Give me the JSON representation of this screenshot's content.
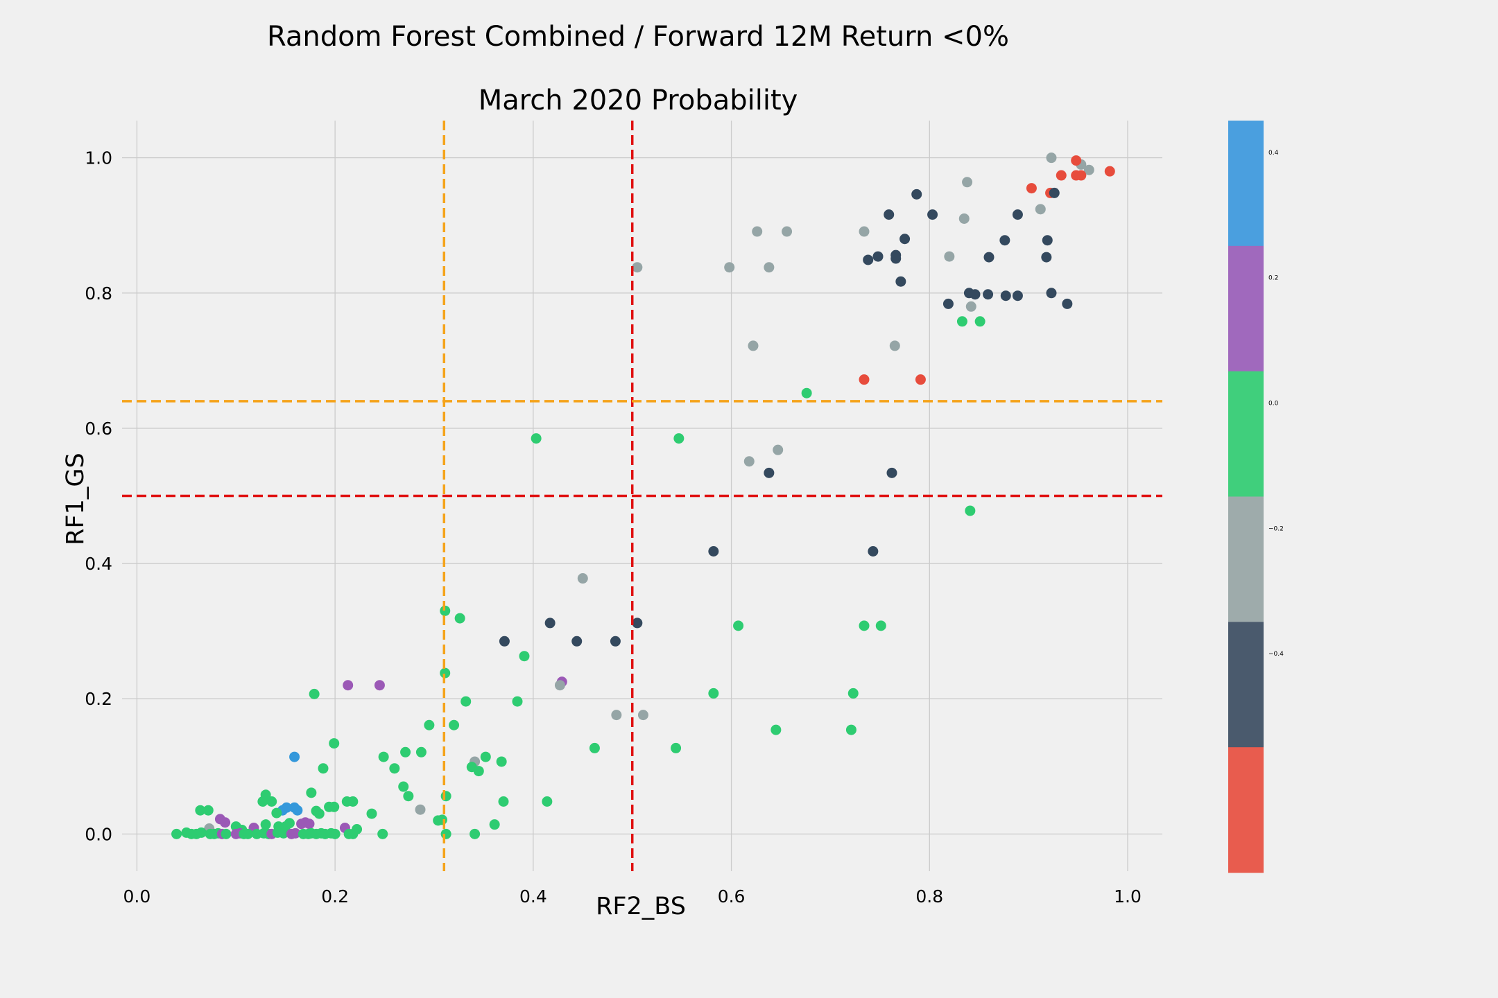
{
  "chart_data": {
    "type": "scatter",
    "title": "Random Forest Combined / Forward 12M Return <0%",
    "subtitle": "March 2020 Probability",
    "xlabel": "RF2_BS",
    "ylabel": "RF1_GS",
    "xlim": [
      -0.015,
      1.035
    ],
    "ylim": [
      -0.055,
      1.055
    ],
    "xticks": [
      "0.0",
      "0.2",
      "0.4",
      "0.6",
      "0.8",
      "1.0"
    ],
    "yticks": [
      "0.0",
      "0.2",
      "0.4",
      "0.6",
      "0.8",
      "1.0"
    ],
    "grid": true,
    "reference_lines": {
      "vertical": [
        {
          "x": 0.31,
          "color": "#f5a31a",
          "style": "dashed"
        },
        {
          "x": 0.5,
          "color": "#e01010",
          "style": "dashed"
        }
      ],
      "horizontal": [
        {
          "y": 0.64,
          "color": "#f5a31a",
          "style": "dashed"
        },
        {
          "y": 0.5,
          "color": "#e01010",
          "style": "dashed"
        }
      ]
    },
    "colorbar": {
      "ticks": [
        "0.4",
        "0.2",
        "0.0",
        "−0.2",
        "−0.4"
      ],
      "bands": [
        {
          "color": "#4a9fdf"
        },
        {
          "color": "#a069bd"
        },
        {
          "color": "#40cf7c"
        },
        {
          "color": "#9eabab"
        },
        {
          "color": "#4a5a6d"
        },
        {
          "color": "#e85c4e"
        }
      ]
    },
    "colors": {
      "red": "#e74c3c",
      "navy": "#34495e",
      "gray": "#95a5a6",
      "green": "#2ecc71",
      "purple": "#9b59b6",
      "blue": "#3498db"
    },
    "points": [
      [
        0.923,
        1.0,
        "gray"
      ],
      [
        0.953,
        0.99,
        "gray"
      ],
      [
        0.961,
        0.982,
        "gray"
      ],
      [
        0.948,
        0.996,
        "red"
      ],
      [
        0.982,
        0.98,
        "red"
      ],
      [
        0.933,
        0.974,
        "red"
      ],
      [
        0.948,
        0.974,
        "red"
      ],
      [
        0.953,
        0.974,
        "red"
      ],
      [
        0.903,
        0.955,
        "red"
      ],
      [
        0.922,
        0.948,
        "red"
      ],
      [
        0.926,
        0.948,
        "navy"
      ],
      [
        0.838,
        0.964,
        "gray"
      ],
      [
        0.787,
        0.946,
        "navy"
      ],
      [
        0.803,
        0.916,
        "navy"
      ],
      [
        0.759,
        0.916,
        "navy"
      ],
      [
        0.889,
        0.916,
        "navy"
      ],
      [
        0.912,
        0.924,
        "gray"
      ],
      [
        0.835,
        0.91,
        "gray"
      ],
      [
        0.626,
        0.891,
        "gray"
      ],
      [
        0.656,
        0.891,
        "gray"
      ],
      [
        0.734,
        0.891,
        "gray"
      ],
      [
        0.775,
        0.88,
        "navy"
      ],
      [
        0.876,
        0.878,
        "navy"
      ],
      [
        0.919,
        0.878,
        "navy"
      ],
      [
        0.738,
        0.849,
        "navy"
      ],
      [
        0.748,
        0.854,
        "navy"
      ],
      [
        0.766,
        0.851,
        "navy"
      ],
      [
        0.766,
        0.856,
        "navy"
      ],
      [
        0.82,
        0.854,
        "gray"
      ],
      [
        0.86,
        0.853,
        "navy"
      ],
      [
        0.918,
        0.853,
        "navy"
      ],
      [
        0.505,
        0.838,
        "gray"
      ],
      [
        0.598,
        0.838,
        "gray"
      ],
      [
        0.638,
        0.838,
        "gray"
      ],
      [
        0.771,
        0.817,
        "navy"
      ],
      [
        0.84,
        0.8,
        "navy"
      ],
      [
        0.846,
        0.798,
        "navy"
      ],
      [
        0.859,
        0.798,
        "navy"
      ],
      [
        0.877,
        0.796,
        "navy"
      ],
      [
        0.889,
        0.796,
        "navy"
      ],
      [
        0.923,
        0.8,
        "navy"
      ],
      [
        0.819,
        0.784,
        "navy"
      ],
      [
        0.842,
        0.78,
        "gray"
      ],
      [
        0.939,
        0.784,
        "navy"
      ],
      [
        0.833,
        0.758,
        "green"
      ],
      [
        0.851,
        0.758,
        "green"
      ],
      [
        0.622,
        0.722,
        "gray"
      ],
      [
        0.765,
        0.722,
        "gray"
      ],
      [
        0.676,
        0.652,
        "green"
      ],
      [
        0.734,
        0.672,
        "red"
      ],
      [
        0.791,
        0.672,
        "red"
      ],
      [
        0.403,
        0.585,
        "green"
      ],
      [
        0.547,
        0.585,
        "green"
      ],
      [
        0.647,
        0.568,
        "gray"
      ],
      [
        0.618,
        0.551,
        "gray"
      ],
      [
        0.638,
        0.534,
        "navy"
      ],
      [
        0.762,
        0.534,
        "navy"
      ],
      [
        0.841,
        0.478,
        "green"
      ],
      [
        0.582,
        0.418,
        "navy"
      ],
      [
        0.743,
        0.418,
        "navy"
      ],
      [
        0.45,
        0.378,
        "gray"
      ],
      [
        0.311,
        0.33,
        "green"
      ],
      [
        0.326,
        0.319,
        "green"
      ],
      [
        0.417,
        0.312,
        "navy"
      ],
      [
        0.505,
        0.312,
        "navy"
      ],
      [
        0.607,
        0.308,
        "green"
      ],
      [
        0.734,
        0.308,
        "green"
      ],
      [
        0.751,
        0.308,
        "green"
      ],
      [
        0.371,
        0.285,
        "navy"
      ],
      [
        0.444,
        0.285,
        "navy"
      ],
      [
        0.483,
        0.285,
        "navy"
      ],
      [
        0.391,
        0.263,
        "green"
      ],
      [
        0.311,
        0.238,
        "green"
      ],
      [
        0.429,
        0.225,
        "purple"
      ],
      [
        0.427,
        0.22,
        "gray"
      ],
      [
        0.213,
        0.22,
        "purple"
      ],
      [
        0.245,
        0.22,
        "purple"
      ],
      [
        0.179,
        0.207,
        "green"
      ],
      [
        0.582,
        0.208,
        "green"
      ],
      [
        0.723,
        0.208,
        "green"
      ],
      [
        0.332,
        0.196,
        "green"
      ],
      [
        0.384,
        0.196,
        "green"
      ],
      [
        0.484,
        0.176,
        "gray"
      ],
      [
        0.511,
        0.176,
        "gray"
      ],
      [
        0.295,
        0.161,
        "green"
      ],
      [
        0.32,
        0.161,
        "green"
      ],
      [
        0.645,
        0.154,
        "green"
      ],
      [
        0.721,
        0.154,
        "green"
      ],
      [
        0.199,
        0.134,
        "green"
      ],
      [
        0.462,
        0.127,
        "green"
      ],
      [
        0.544,
        0.127,
        "green"
      ],
      [
        0.271,
        0.121,
        "green"
      ],
      [
        0.287,
        0.121,
        "green"
      ],
      [
        0.159,
        0.114,
        "blue"
      ],
      [
        0.249,
        0.114,
        "green"
      ],
      [
        0.352,
        0.114,
        "green"
      ],
      [
        0.341,
        0.107,
        "gray"
      ],
      [
        0.368,
        0.107,
        "green"
      ],
      [
        0.26,
        0.097,
        "green"
      ],
      [
        0.188,
        0.097,
        "green"
      ],
      [
        0.338,
        0.099,
        "green"
      ],
      [
        0.345,
        0.093,
        "green"
      ],
      [
        0.269,
        0.07,
        "green"
      ],
      [
        0.176,
        0.061,
        "green"
      ],
      [
        0.13,
        0.058,
        "green"
      ],
      [
        0.127,
        0.048,
        "green"
      ],
      [
        0.136,
        0.048,
        "green"
      ],
      [
        0.212,
        0.048,
        "green"
      ],
      [
        0.218,
        0.048,
        "green"
      ],
      [
        0.274,
        0.056,
        "green"
      ],
      [
        0.312,
        0.056,
        "green"
      ],
      [
        0.37,
        0.048,
        "green"
      ],
      [
        0.414,
        0.048,
        "green"
      ],
      [
        0.147,
        0.035,
        "blue"
      ],
      [
        0.151,
        0.039,
        "blue"
      ],
      [
        0.159,
        0.039,
        "blue"
      ],
      [
        0.162,
        0.035,
        "blue"
      ],
      [
        0.141,
        0.031,
        "green"
      ],
      [
        0.181,
        0.034,
        "green"
      ],
      [
        0.184,
        0.03,
        "green"
      ],
      [
        0.194,
        0.04,
        "green"
      ],
      [
        0.199,
        0.04,
        "green"
      ],
      [
        0.237,
        0.03,
        "green"
      ],
      [
        0.286,
        0.036,
        "gray"
      ],
      [
        0.064,
        0.035,
        "green"
      ],
      [
        0.072,
        0.035,
        "green"
      ],
      [
        0.084,
        0.022,
        "purple"
      ],
      [
        0.089,
        0.017,
        "purple"
      ],
      [
        0.304,
        0.02,
        "green"
      ],
      [
        0.308,
        0.021,
        "green"
      ],
      [
        0.361,
        0.014,
        "green"
      ],
      [
        0.17,
        0.017,
        "purple"
      ],
      [
        0.174,
        0.015,
        "purple"
      ],
      [
        0.166,
        0.015,
        "purple"
      ],
      [
        0.154,
        0.016,
        "green"
      ],
      [
        0.13,
        0.014,
        "green"
      ],
      [
        0.143,
        0.011,
        "green"
      ],
      [
        0.15,
        0.011,
        "green"
      ],
      [
        0.1,
        0.011,
        "green"
      ],
      [
        0.106,
        0.006,
        "green"
      ],
      [
        0.118,
        0.009,
        "purple"
      ],
      [
        0.21,
        0.009,
        "purple"
      ],
      [
        0.222,
        0.007,
        "green"
      ],
      [
        0.073,
        0.008,
        "gray"
      ],
      [
        0.04,
        0.0,
        "green"
      ],
      [
        0.05,
        0.002,
        "green"
      ],
      [
        0.055,
        0.0,
        "green"
      ],
      [
        0.06,
        0.0,
        "green"
      ],
      [
        0.065,
        0.002,
        "green"
      ],
      [
        0.074,
        0.0,
        "green"
      ],
      [
        0.078,
        0.0,
        "green"
      ],
      [
        0.082,
        0.001,
        "green"
      ],
      [
        0.086,
        0.0,
        "purple"
      ],
      [
        0.09,
        0.0,
        "green"
      ],
      [
        0.1,
        0.0,
        "purple"
      ],
      [
        0.104,
        0.001,
        "purple"
      ],
      [
        0.108,
        0.0,
        "green"
      ],
      [
        0.112,
        0.0,
        "green"
      ],
      [
        0.121,
        0.0,
        "green"
      ],
      [
        0.128,
        0.001,
        "green"
      ],
      [
        0.133,
        0.0,
        "green"
      ],
      [
        0.136,
        0.0,
        "purple"
      ],
      [
        0.142,
        0.002,
        "green"
      ],
      [
        0.148,
        0.001,
        "green"
      ],
      [
        0.156,
        0.0,
        "purple"
      ],
      [
        0.16,
        0.001,
        "purple"
      ],
      [
        0.168,
        0.0,
        "green"
      ],
      [
        0.173,
        0.0,
        "green"
      ],
      [
        0.176,
        0.001,
        "green"
      ],
      [
        0.181,
        0.0,
        "green"
      ],
      [
        0.186,
        0.001,
        "green"
      ],
      [
        0.19,
        0.0,
        "green"
      ],
      [
        0.196,
        0.001,
        "green"
      ],
      [
        0.2,
        0.0,
        "green"
      ],
      [
        0.214,
        0.0,
        "green"
      ],
      [
        0.218,
        0.0,
        "green"
      ],
      [
        0.248,
        0.0,
        "green"
      ],
      [
        0.312,
        0.0,
        "green"
      ],
      [
        0.341,
        0.0,
        "green"
      ]
    ]
  }
}
